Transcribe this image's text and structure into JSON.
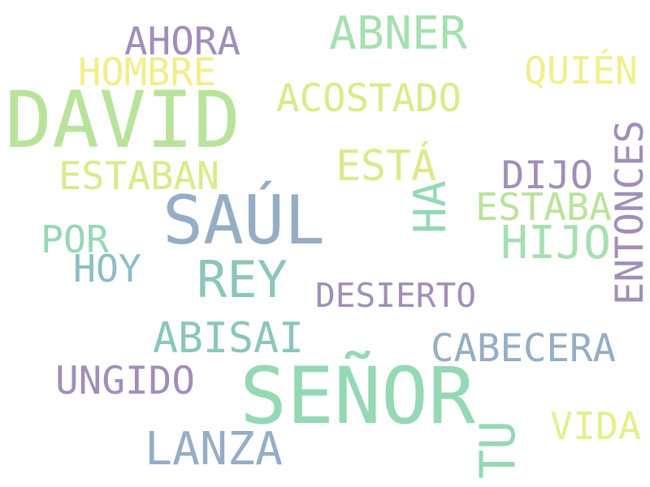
{
  "palette": {
    "light_green": "#b9e39a",
    "mint": "#94d8b4",
    "teal": "#8cc6bb",
    "slate": "#95adc5",
    "purple": "#a08eb8",
    "yellow": "#f2ef8a",
    "lime": "#dde98a"
  },
  "words": [
    {
      "id": "david",
      "text": "DAVID",
      "color": "#b9e39a"
    },
    {
      "id": "senor",
      "text": "SEÑOR",
      "color": "#94d8b4"
    },
    {
      "id": "saul",
      "text": "SAÚL",
      "color": "#95adc5"
    },
    {
      "id": "rey",
      "text": "REY",
      "color": "#8cc6bb"
    },
    {
      "id": "abner",
      "text": "ABNER",
      "color": "#a5e0b0"
    },
    {
      "id": "ahora",
      "text": "AHORA",
      "color": "#a08eb8"
    },
    {
      "id": "hombre",
      "text": "HOMBRE",
      "color": "#f2ef8a"
    },
    {
      "id": "acostado",
      "text": "ACOSTADO",
      "color": "#dde98a"
    },
    {
      "id": "quien",
      "text": "QUIÉN",
      "color": "#f2ef8a"
    },
    {
      "id": "esta",
      "text": "ESTÁ",
      "color": "#dde98a"
    },
    {
      "id": "estaban",
      "text": "ESTABAN",
      "color": "#dde98a"
    },
    {
      "id": "dijo",
      "text": "DIJO",
      "color": "#a08eb8"
    },
    {
      "id": "entonces",
      "text": "ENTONCES",
      "color": "#a08eb8"
    },
    {
      "id": "ha",
      "text": "HA",
      "color": "#94d8b4"
    },
    {
      "id": "estaba",
      "text": "ESTABA",
      "color": "#b9e39a"
    },
    {
      "id": "hijo",
      "text": "HIJO",
      "color": "#a5e0b0"
    },
    {
      "id": "por",
      "text": "POR",
      "color": "#94d8b4"
    },
    {
      "id": "hoy",
      "text": "HOY",
      "color": "#8cbec5"
    },
    {
      "id": "desierto",
      "text": "DESIERTO",
      "color": "#a08eb8"
    },
    {
      "id": "abisai",
      "text": "ABISAI",
      "color": "#8cc6bb"
    },
    {
      "id": "cabecera",
      "text": "CABECERA",
      "color": "#95adc5"
    },
    {
      "id": "ungido",
      "text": "UNGIDO",
      "color": "#a08eb8"
    },
    {
      "id": "tu",
      "text": "TU",
      "color": "#94d8b4"
    },
    {
      "id": "vida",
      "text": "VIDA",
      "color": "#e6ef8a"
    },
    {
      "id": "lanza",
      "text": "LANZA",
      "color": "#95adc5"
    }
  ]
}
